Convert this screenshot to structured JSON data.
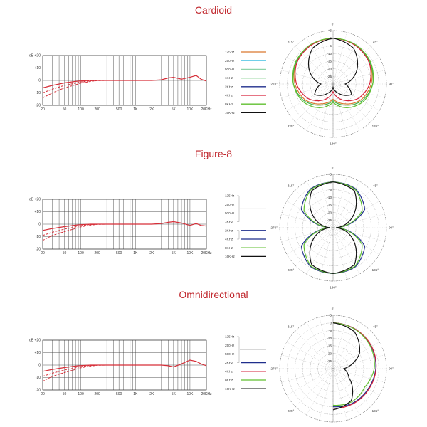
{
  "colors": {
    "title": "#c0272d",
    "response": "#d62e38",
    "legend": {
      "125Hz": "#d9782d",
      "250Hz": "#5bc8e6",
      "500Hz": "#8fd3a8",
      "1KHz": "#3fb24d",
      "2KHz": "#1f2e8c",
      "4KHz": "#d6203a",
      "8KHz": "#5fbf2f",
      "16KHz": "#111111"
    }
  },
  "sections": [
    {
      "title": "Cardioid",
      "legend_bracket": false,
      "legend": [
        {
          "label": "125Hz",
          "color": "#d9782d"
        },
        {
          "label": "250Hz",
          "color": "#5bc8e6"
        },
        {
          "label": "500Hz",
          "color": "#8fd3a8"
        },
        {
          "label": "1KHz",
          "color": "#3fb24d"
        },
        {
          "label": "2KHz",
          "color": "#1f2e8c"
        },
        {
          "label": "4KHz",
          "color": "#d6203a"
        },
        {
          "label": "8KHz",
          "color": "#5fbf2f"
        },
        {
          "label": "16KHz",
          "color": "#111111"
        }
      ]
    },
    {
      "title": "Figure-8",
      "legend_bracket": true,
      "legend": [
        {
          "label": "125Hz",
          "color": null
        },
        {
          "label": "250Hz",
          "color": null
        },
        {
          "label": "500Hz",
          "color": null
        },
        {
          "label": "1KHz",
          "color": null
        },
        {
          "label": "2KHz",
          "color": "#1f2e8c"
        },
        {
          "label": "4KHz",
          "color": "#1f2e8c"
        },
        {
          "label": "8KHz",
          "color": "#5fbf2f"
        },
        {
          "label": "16KHz",
          "color": "#111111"
        }
      ]
    },
    {
      "title": "Omnidirectional",
      "legend_bracket": true,
      "legend": [
        {
          "label": "125Hz",
          "color": null
        },
        {
          "label": "250Hz",
          "color": null
        },
        {
          "label": "500Hz",
          "color": null
        },
        {
          "label": "2KHz",
          "color": "#1f2e8c"
        },
        {
          "label": "4KHz",
          "color": "#d6203a"
        },
        {
          "label": "8KHz",
          "color": "#5fbf2f"
        },
        {
          "label": "16KHz",
          "color": "#111111"
        }
      ]
    }
  ],
  "chart_data": [
    {
      "type": "line",
      "title": "Cardioid",
      "xscale": "log",
      "xticks": [
        "20",
        "50",
        "100",
        "200",
        "500",
        "1K",
        "2K",
        "5K",
        "10K",
        "20KHz"
      ],
      "xtick_values": [
        20,
        50,
        100,
        200,
        500,
        1000,
        2000,
        5000,
        10000,
        20000
      ],
      "yticks": [
        "dB +20",
        "+10",
        "0",
        "-10",
        "-20"
      ],
      "ytick_values": [
        20,
        10,
        0,
        -10,
        -20
      ],
      "ylim": [
        -20,
        20
      ],
      "series": [
        {
          "x": [
            20,
            30,
            50,
            80,
            100,
            150,
            200,
            300,
            500,
            1000,
            2000,
            3000,
            4000,
            5000,
            7000,
            10000,
            13000,
            16000,
            20000
          ],
          "y": [
            -6,
            -4,
            -2,
            -0.8,
            -0.4,
            0,
            0,
            0,
            0,
            0,
            0,
            0.5,
            2,
            2.5,
            1,
            2.5,
            4,
            1,
            -0.5
          ]
        },
        {
          "x": [
            20,
            30,
            50,
            80,
            100,
            150,
            200,
            300,
            500
          ],
          "y": [
            -10,
            -7,
            -4,
            -2.2,
            -1.2,
            -0.3,
            0,
            0,
            0
          ]
        },
        {
          "x": [
            20,
            30,
            50,
            80,
            100,
            150,
            200,
            300,
            500
          ],
          "y": [
            -14,
            -10,
            -6,
            -3.5,
            -2.2,
            -0.8,
            -0.2,
            0,
            0
          ]
        }
      ]
    },
    {
      "type": "polar",
      "title": "Cardioid",
      "angle_labels": [
        "0°",
        "45°",
        "90°",
        "135°",
        "180°",
        "225°",
        "270°",
        "315°"
      ],
      "radial_labels": [
        "+5",
        "0",
        "-5",
        "-10",
        "-15",
        "-20",
        "-25"
      ],
      "radial_values": [
        5,
        0,
        -5,
        -10,
        -15,
        -20,
        -25
      ],
      "rlim": [
        -30,
        5
      ],
      "angles": [
        0,
        30,
        60,
        90,
        120,
        150,
        180,
        210,
        240,
        270,
        300,
        330,
        360
      ],
      "series": [
        {
          "name": "125Hz",
          "r": [
            0,
            -0.5,
            -2,
            -5,
            -9,
            -15,
            -20,
            -15,
            -9,
            -5,
            -2,
            -0.5,
            0
          ]
        },
        {
          "name": "1KHz",
          "r": [
            0,
            -0.5,
            -2,
            -4,
            -8,
            -14,
            -19,
            -14,
            -8,
            -4,
            -2,
            -0.5,
            0
          ]
        },
        {
          "name": "4KHz",
          "r": [
            0,
            -0.8,
            -2.5,
            -6,
            -11,
            -18,
            -25,
            -18,
            -11,
            -6,
            -2.5,
            -0.8,
            0
          ]
        },
        {
          "name": "8KHz",
          "r": [
            0,
            -0.3,
            -1.5,
            -4,
            -7,
            -12,
            -18,
            -12,
            -7,
            -4,
            -1.5,
            -0.3,
            0
          ]
        },
        {
          "name": "16KHz",
          "r": [
            0,
            -3,
            -12,
            -22,
            -16,
            -23,
            -28,
            -23,
            -16,
            -22,
            -12,
            -3,
            0
          ]
        }
      ]
    },
    {
      "type": "line",
      "title": "Figure-8",
      "xscale": "log",
      "xticks": [
        "20",
        "50",
        "100",
        "200",
        "500",
        "1K",
        "2K",
        "5K",
        "10K",
        "20KHz"
      ],
      "xtick_values": [
        20,
        50,
        100,
        200,
        500,
        1000,
        2000,
        5000,
        10000,
        20000
      ],
      "yticks": [
        "dB +20",
        "+10",
        "0",
        "-10",
        "-20"
      ],
      "ytick_values": [
        20,
        10,
        0,
        -10,
        -20
      ],
      "ylim": [
        -20,
        20
      ],
      "series": [
        {
          "x": [
            20,
            30,
            50,
            80,
            100,
            150,
            200,
            300,
            500,
            1000,
            2000,
            3000,
            4000,
            5000,
            7000,
            10000,
            13000,
            16000,
            20000
          ],
          "y": [
            -5,
            -3.5,
            -2,
            -0.8,
            -0.4,
            0,
            0,
            0,
            0,
            0,
            0,
            0.5,
            1.5,
            2,
            1,
            -1,
            0.5,
            -1,
            -1.5
          ]
        },
        {
          "x": [
            20,
            30,
            50,
            80,
            100,
            150,
            200,
            300,
            500
          ],
          "y": [
            -9,
            -6.5,
            -4,
            -2.2,
            -1.2,
            -0.3,
            0,
            0,
            0
          ]
        },
        {
          "x": [
            20,
            30,
            50,
            80,
            100,
            150,
            200,
            300,
            500
          ],
          "y": [
            -13,
            -9,
            -6,
            -3.5,
            -2.2,
            -0.8,
            -0.2,
            0,
            0
          ]
        }
      ]
    },
    {
      "type": "polar",
      "title": "Figure-8",
      "angle_labels": [
        "0°",
        "45°",
        "90°",
        "135°",
        "180°",
        "225°",
        "270°",
        "315°"
      ],
      "radial_labels": [
        "+5",
        "0",
        "-5",
        "-10",
        "-15",
        "-20",
        "-25"
      ],
      "radial_values": [
        5,
        0,
        -5,
        -10,
        -15,
        -20,
        -25
      ],
      "rlim": [
        -30,
        5
      ],
      "angles": [
        0,
        30,
        60,
        90,
        120,
        150,
        180,
        210,
        240,
        270,
        300,
        330,
        360
      ],
      "series": [
        {
          "name": "2KHz",
          "r": [
            0,
            -0.5,
            -6,
            -28,
            -6,
            -0.5,
            0,
            -0.5,
            -6,
            -28,
            -6,
            -0.5,
            0
          ]
        },
        {
          "name": "8KHz",
          "r": [
            0,
            -1,
            -8,
            -28,
            -8,
            -1,
            0,
            -1,
            -8,
            -28,
            -8,
            -1,
            0
          ]
        },
        {
          "name": "16KHz",
          "r": [
            0,
            -2,
            -15,
            -28,
            -15,
            -2,
            0,
            -2,
            -15,
            -28,
            -15,
            -2,
            0
          ]
        }
      ]
    },
    {
      "type": "line",
      "title": "Omnidirectional",
      "xscale": "log",
      "xticks": [
        "20",
        "50",
        "100",
        "200",
        "500",
        "1K",
        "2K",
        "5K",
        "10K",
        "20KHz"
      ],
      "xtick_values": [
        20,
        50,
        100,
        200,
        500,
        1000,
        2000,
        5000,
        10000,
        20000
      ],
      "yticks": [
        "dB +20",
        "+10",
        "0",
        "-10",
        "-20"
      ],
      "ytick_values": [
        20,
        10,
        0,
        -10,
        -20
      ],
      "ylim": [
        -20,
        20
      ],
      "series": [
        {
          "x": [
            20,
            30,
            50,
            80,
            100,
            150,
            200,
            300,
            500,
            1000,
            2000,
            3000,
            4000,
            5000,
            7000,
            10000,
            13000,
            16000,
            20000
          ],
          "y": [
            -5,
            -3.5,
            -2,
            -0.8,
            -0.4,
            0,
            0,
            0,
            0,
            0,
            0,
            0,
            -0.5,
            -1.5,
            1,
            4,
            3,
            1,
            -0.5
          ]
        },
        {
          "x": [
            20,
            30,
            50,
            80,
            100,
            150,
            200,
            300,
            500
          ],
          "y": [
            -9,
            -6.5,
            -4,
            -2.2,
            -1.2,
            -0.3,
            0,
            0,
            0
          ]
        },
        {
          "x": [
            20,
            30,
            50,
            80,
            100,
            150,
            200,
            300,
            500
          ],
          "y": [
            -13,
            -9,
            -6,
            -3.5,
            -2.2,
            -0.8,
            -0.2,
            0,
            0
          ]
        }
      ]
    },
    {
      "type": "polar",
      "title": "Omnidirectional",
      "angle_labels": [
        "0°",
        "45°",
        "90°",
        "135°",
        "180°",
        "225°",
        "270°",
        "315°"
      ],
      "radial_labels": [
        "+5",
        "0",
        "-5",
        "-10",
        "-15",
        "-20",
        "-25"
      ],
      "radial_values": [
        5,
        0,
        -5,
        -10,
        -15,
        -20,
        -25
      ],
      "rlim": [
        -30,
        5
      ],
      "angles": [
        0,
        30,
        60,
        90,
        120,
        150,
        180
      ],
      "series": [
        {
          "name": "2KHz",
          "r": [
            0,
            -0.3,
            -1,
            -2,
            -3.5,
            -4,
            -5
          ]
        },
        {
          "name": "4KHz",
          "r": [
            0,
            -0.3,
            -0.8,
            -1.8,
            -3,
            -3.5,
            -4
          ]
        },
        {
          "name": "8KHz",
          "r": [
            0,
            -0.5,
            -1.5,
            -3,
            -6,
            -5,
            -6
          ]
        },
        {
          "name": "16KHz",
          "r": [
            0,
            -2,
            -10,
            -23,
            -18,
            -6,
            -3
          ]
        }
      ]
    }
  ]
}
